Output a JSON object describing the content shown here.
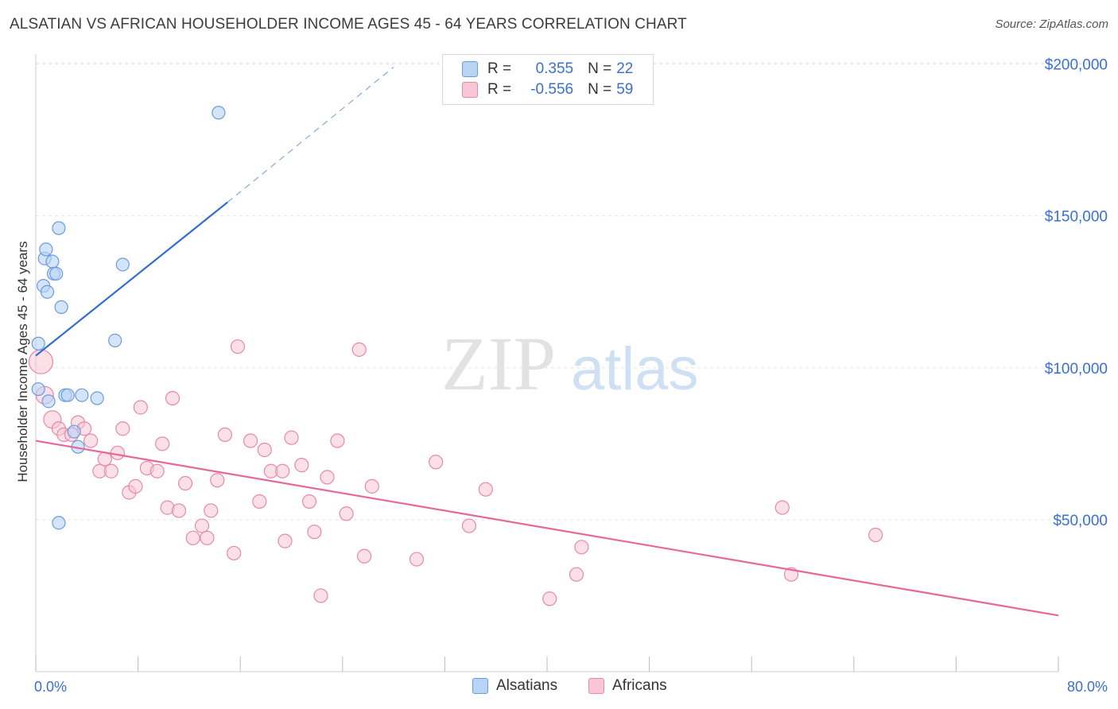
{
  "title": "ALSATIAN VS AFRICAN HOUSEHOLDER INCOME AGES 45 - 64 YEARS CORRELATION CHART",
  "source": "Source: ZipAtlas.com",
  "watermark": {
    "zip": "ZIP",
    "atlas": "atlas"
  },
  "legend": {
    "alsatians": {
      "r_label": "R =",
      "r_value": "0.355",
      "n_label": "N =",
      "n_value": "22"
    },
    "africans": {
      "r_label": "R =",
      "r_value": "-0.556",
      "n_label": "N =",
      "n_value": "59"
    }
  },
  "colors": {
    "alsatians_fill": "#b9d3f5",
    "alsatians_stroke": "#6a9ae0",
    "alsatians_line": "#2f6fd0",
    "africans_fill": "#f8c6d6",
    "africans_stroke": "#e888aa",
    "africans_line": "#e8679a",
    "axis_text": "#3b6fd1"
  },
  "chart_data": {
    "type": "scatter",
    "title": "ALSATIAN VS AFRICAN HOUSEHOLDER INCOME AGES 45 - 64 YEARS CORRELATION CHART",
    "xlabel": "",
    "ylabel": "Householder Income Ages 45 - 64 years",
    "xlim": [
      0,
      80
    ],
    "ylim": [
      0,
      205000
    ],
    "x_tick_labels": [
      "0.0%",
      "80.0%"
    ],
    "y_ticks": [
      50000,
      100000,
      150000,
      200000
    ],
    "y_tick_labels": [
      "$50,000",
      "$100,000",
      "$150,000",
      "$200,000"
    ],
    "grid": true,
    "legend_position": "top-center",
    "series": [
      {
        "name": "Alsatians",
        "points": [
          [
            0.2,
            108000
          ],
          [
            0.2,
            93000
          ],
          [
            0.6,
            127000
          ],
          [
            0.7,
            136000
          ],
          [
            0.8,
            139000
          ],
          [
            0.9,
            125000
          ],
          [
            1.0,
            89000
          ],
          [
            1.3,
            135000
          ],
          [
            1.4,
            131000
          ],
          [
            1.6,
            131000
          ],
          [
            1.8,
            146000
          ],
          [
            1.8,
            49000
          ],
          [
            2.0,
            120000
          ],
          [
            2.3,
            91000
          ],
          [
            2.5,
            91000
          ],
          [
            3.0,
            79000
          ],
          [
            3.3,
            74000
          ],
          [
            3.6,
            91000
          ],
          [
            4.8,
            90000
          ],
          [
            6.2,
            109000
          ],
          [
            6.8,
            134000
          ],
          [
            14.3,
            184000
          ]
        ],
        "trend": {
          "x": [
            0,
            15
          ],
          "y": [
            104000,
            154500
          ],
          "dashed_to": [
            28,
            199000
          ]
        }
      },
      {
        "name": "Africans",
        "points": [
          [
            0.4,
            102000
          ],
          [
            0.7,
            91000
          ],
          [
            1.3,
            83000
          ],
          [
            1.8,
            80000
          ],
          [
            2.2,
            78000
          ],
          [
            2.8,
            78000
          ],
          [
            3.3,
            82000
          ],
          [
            3.8,
            80000
          ],
          [
            4.3,
            76000
          ],
          [
            5.0,
            66000
          ],
          [
            5.4,
            70000
          ],
          [
            5.9,
            66000
          ],
          [
            6.4,
            72000
          ],
          [
            6.8,
            80000
          ],
          [
            7.3,
            59000
          ],
          [
            7.8,
            61000
          ],
          [
            8.2,
            87000
          ],
          [
            8.7,
            67000
          ],
          [
            9.5,
            66000
          ],
          [
            9.9,
            75000
          ],
          [
            10.3,
            54000
          ],
          [
            10.7,
            90000
          ],
          [
            11.2,
            53000
          ],
          [
            11.7,
            62000
          ],
          [
            12.3,
            44000
          ],
          [
            13.0,
            48000
          ],
          [
            13.4,
            44000
          ],
          [
            13.7,
            53000
          ],
          [
            14.2,
            63000
          ],
          [
            14.8,
            78000
          ],
          [
            15.5,
            39000
          ],
          [
            15.8,
            107000
          ],
          [
            16.8,
            76000
          ],
          [
            17.5,
            56000
          ],
          [
            17.9,
            73000
          ],
          [
            18.4,
            66000
          ],
          [
            19.3,
            66000
          ],
          [
            19.5,
            43000
          ],
          [
            20.0,
            77000
          ],
          [
            20.8,
            68000
          ],
          [
            21.4,
            56000
          ],
          [
            21.8,
            46000
          ],
          [
            22.3,
            25000
          ],
          [
            22.8,
            64000
          ],
          [
            23.6,
            76000
          ],
          [
            24.3,
            52000
          ],
          [
            25.3,
            106000
          ],
          [
            25.7,
            38000
          ],
          [
            26.3,
            61000
          ],
          [
            29.8,
            37000
          ],
          [
            31.3,
            69000
          ],
          [
            33.9,
            48000
          ],
          [
            35.2,
            60000
          ],
          [
            40.2,
            24000
          ],
          [
            42.3,
            32000
          ],
          [
            42.7,
            41000
          ],
          [
            58.4,
            54000
          ],
          [
            59.1,
            32000
          ],
          [
            65.7,
            45000
          ]
        ],
        "trend": {
          "x": [
            0,
            80
          ],
          "y": [
            76000,
            18500
          ]
        }
      }
    ]
  },
  "bottom_legend": {
    "alsatians": "Alsatians",
    "africans": "Africans"
  }
}
